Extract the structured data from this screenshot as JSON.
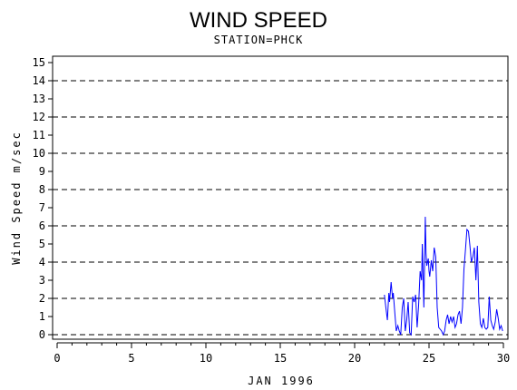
{
  "chart_data": {
    "type": "line",
    "title": "WIND SPEED",
    "subtitle": "STATION=PHCK",
    "xlabel": "JAN 1996",
    "ylabel": "Wind Speed m/sec",
    "xlim": [
      0,
      30
    ],
    "ylim": [
      0,
      15
    ],
    "x_ticks": [
      0,
      5,
      10,
      15,
      20,
      25,
      30
    ],
    "y_ticks": [
      0,
      1,
      2,
      3,
      4,
      5,
      6,
      7,
      8,
      9,
      10,
      11,
      12,
      13,
      14,
      15
    ],
    "dashed_gridlines_y": [
      0,
      2,
      4,
      6,
      8,
      10,
      12,
      14
    ],
    "grid": "horizontal dashed",
    "line_color": "#0000ff",
    "series": [
      {
        "x": [
          22.0,
          22.1,
          22.2,
          22.3,
          22.35,
          22.45,
          22.55,
          22.6,
          22.7,
          22.8,
          22.9,
          23.0,
          23.1,
          23.2,
          23.3,
          23.4,
          23.5,
          23.6,
          23.7,
          23.8,
          23.9,
          24.0,
          24.1,
          24.2,
          24.3,
          24.4,
          24.5,
          24.55,
          24.65,
          24.75,
          24.8,
          24.85,
          24.95,
          25.0,
          25.05,
          25.15,
          25.25,
          25.35,
          25.45,
          25.55,
          25.65,
          25.75,
          25.85,
          25.95,
          26.05,
          26.15,
          26.25,
          26.35,
          26.45,
          26.55,
          26.65,
          26.75,
          26.85,
          26.95,
          27.05,
          27.15,
          27.25,
          27.35,
          27.45,
          27.55,
          27.65,
          27.75,
          27.85,
          27.95,
          28.05,
          28.15,
          28.25,
          28.35,
          28.45,
          28.55,
          28.65,
          28.75,
          28.85,
          28.95,
          29.05,
          29.15,
          29.25,
          29.35,
          29.45,
          29.55,
          29.65,
          29.75,
          29.85,
          29.95
        ],
        "y": [
          2.2,
          1.5,
          0.8,
          2.3,
          1.8,
          2.9,
          2.0,
          2.3,
          1.2,
          0.2,
          0.5,
          0.2,
          0.0,
          1.5,
          2.0,
          0.2,
          0.8,
          1.8,
          0.1,
          0.0,
          2.1,
          1.8,
          2.2,
          0.4,
          1.6,
          3.5,
          3.0,
          5.0,
          1.5,
          6.5,
          4.5,
          3.8,
          4.2,
          3.5,
          3.2,
          4.1,
          3.5,
          4.8,
          4.3,
          1.5,
          0.4,
          0.3,
          0.2,
          0.0,
          0.2,
          0.8,
          1.1,
          0.6,
          1.0,
          0.7,
          1.0,
          0.4,
          0.6,
          1.1,
          1.3,
          0.6,
          1.5,
          3.6,
          4.7,
          5.8,
          5.7,
          4.9,
          4.0,
          4.3,
          4.8,
          3.0,
          4.9,
          1.8,
          0.6,
          0.4,
          0.9,
          0.4,
          0.3,
          0.4,
          2.1,
          0.8,
          0.5,
          0.3,
          0.7,
          1.4,
          0.9,
          0.3,
          0.5,
          0.2
        ]
      }
    ]
  }
}
